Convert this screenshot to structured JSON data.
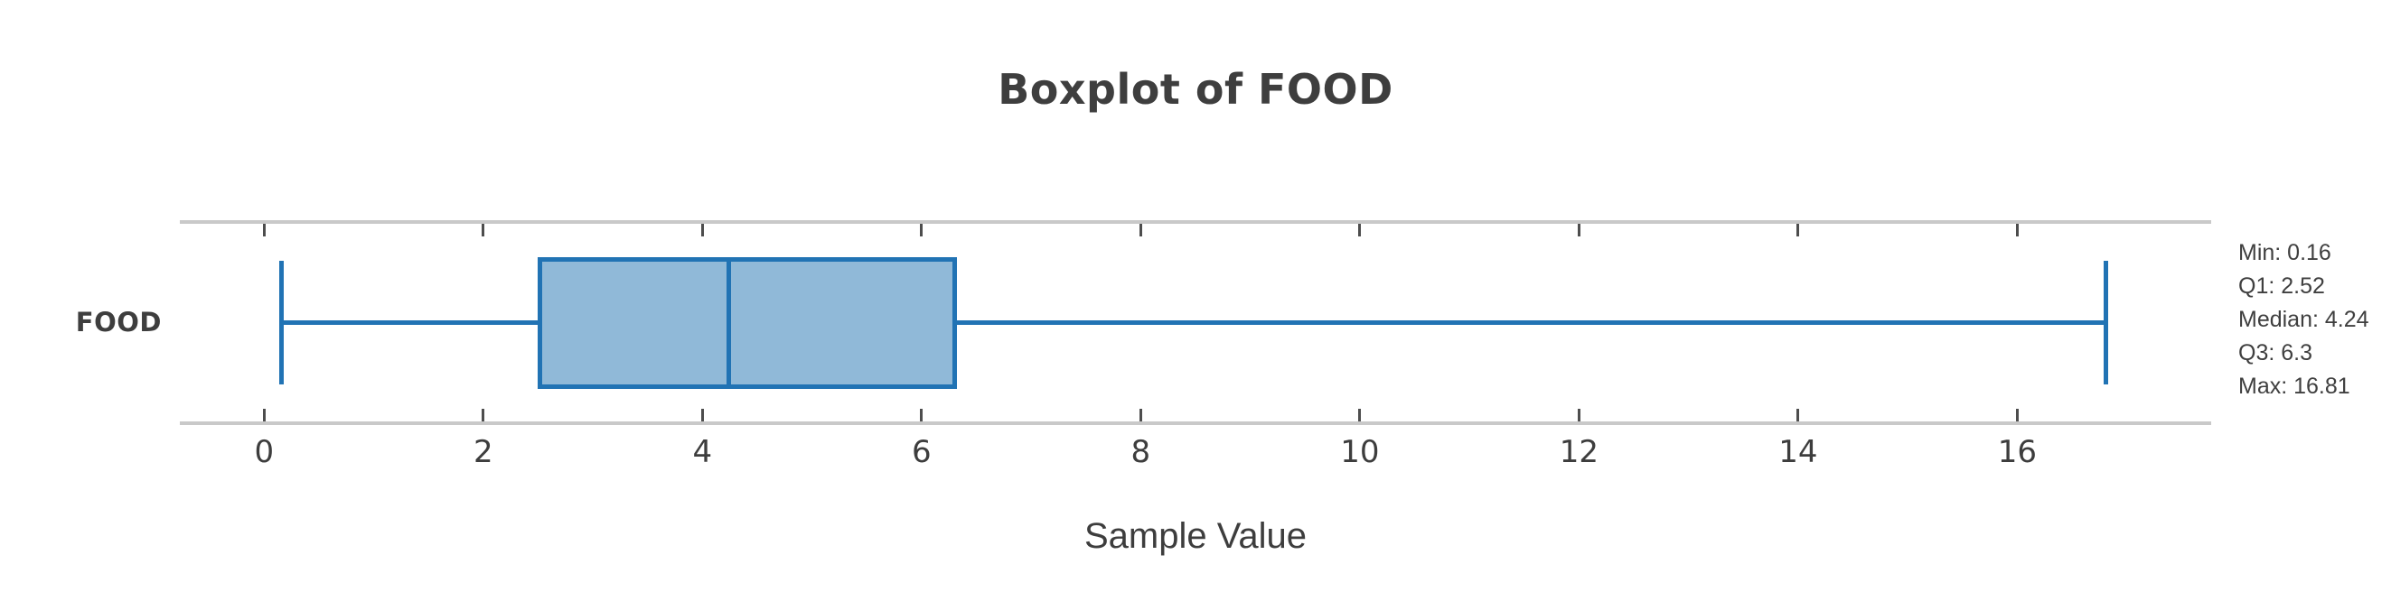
{
  "chart_data": {
    "type": "box",
    "orientation": "horizontal",
    "title": "Boxplot of FOOD",
    "xlabel": "Sample Value",
    "categories": [
      "FOOD"
    ],
    "series": [
      {
        "name": "FOOD",
        "min": 0.16,
        "q1": 2.52,
        "median": 4.24,
        "q3": 6.3,
        "max": 16.81,
        "outliers": []
      }
    ],
    "x_ticks": [
      0,
      2,
      4,
      6,
      8,
      10,
      12,
      14,
      16
    ],
    "xlim": [
      -0.77,
      17.77
    ],
    "grid": false,
    "legend": "none",
    "spines": [
      "top",
      "bottom"
    ],
    "tick_direction": "in",
    "annotations": {
      "position": "right",
      "lines": [
        "Min: 0.16",
        "Q1: 2.52",
        "Median: 4.24",
        "Q3: 6.3",
        "Max: 16.81"
      ]
    },
    "colors": {
      "box_fill": "#90b9d8",
      "box_edge": "#2173b4",
      "whisker": "#2173b4",
      "median": "#2173b4",
      "axis_line": "#c9c9c9",
      "tick_mark": "#4d4d4d",
      "tick_label": "#3d3d3d",
      "title": "#3e3e3e",
      "category_label": "#3e3e3e",
      "axis_title": "#3d3d3d",
      "annotation_text": "#3f3f3f",
      "background": "#ffffff"
    }
  }
}
